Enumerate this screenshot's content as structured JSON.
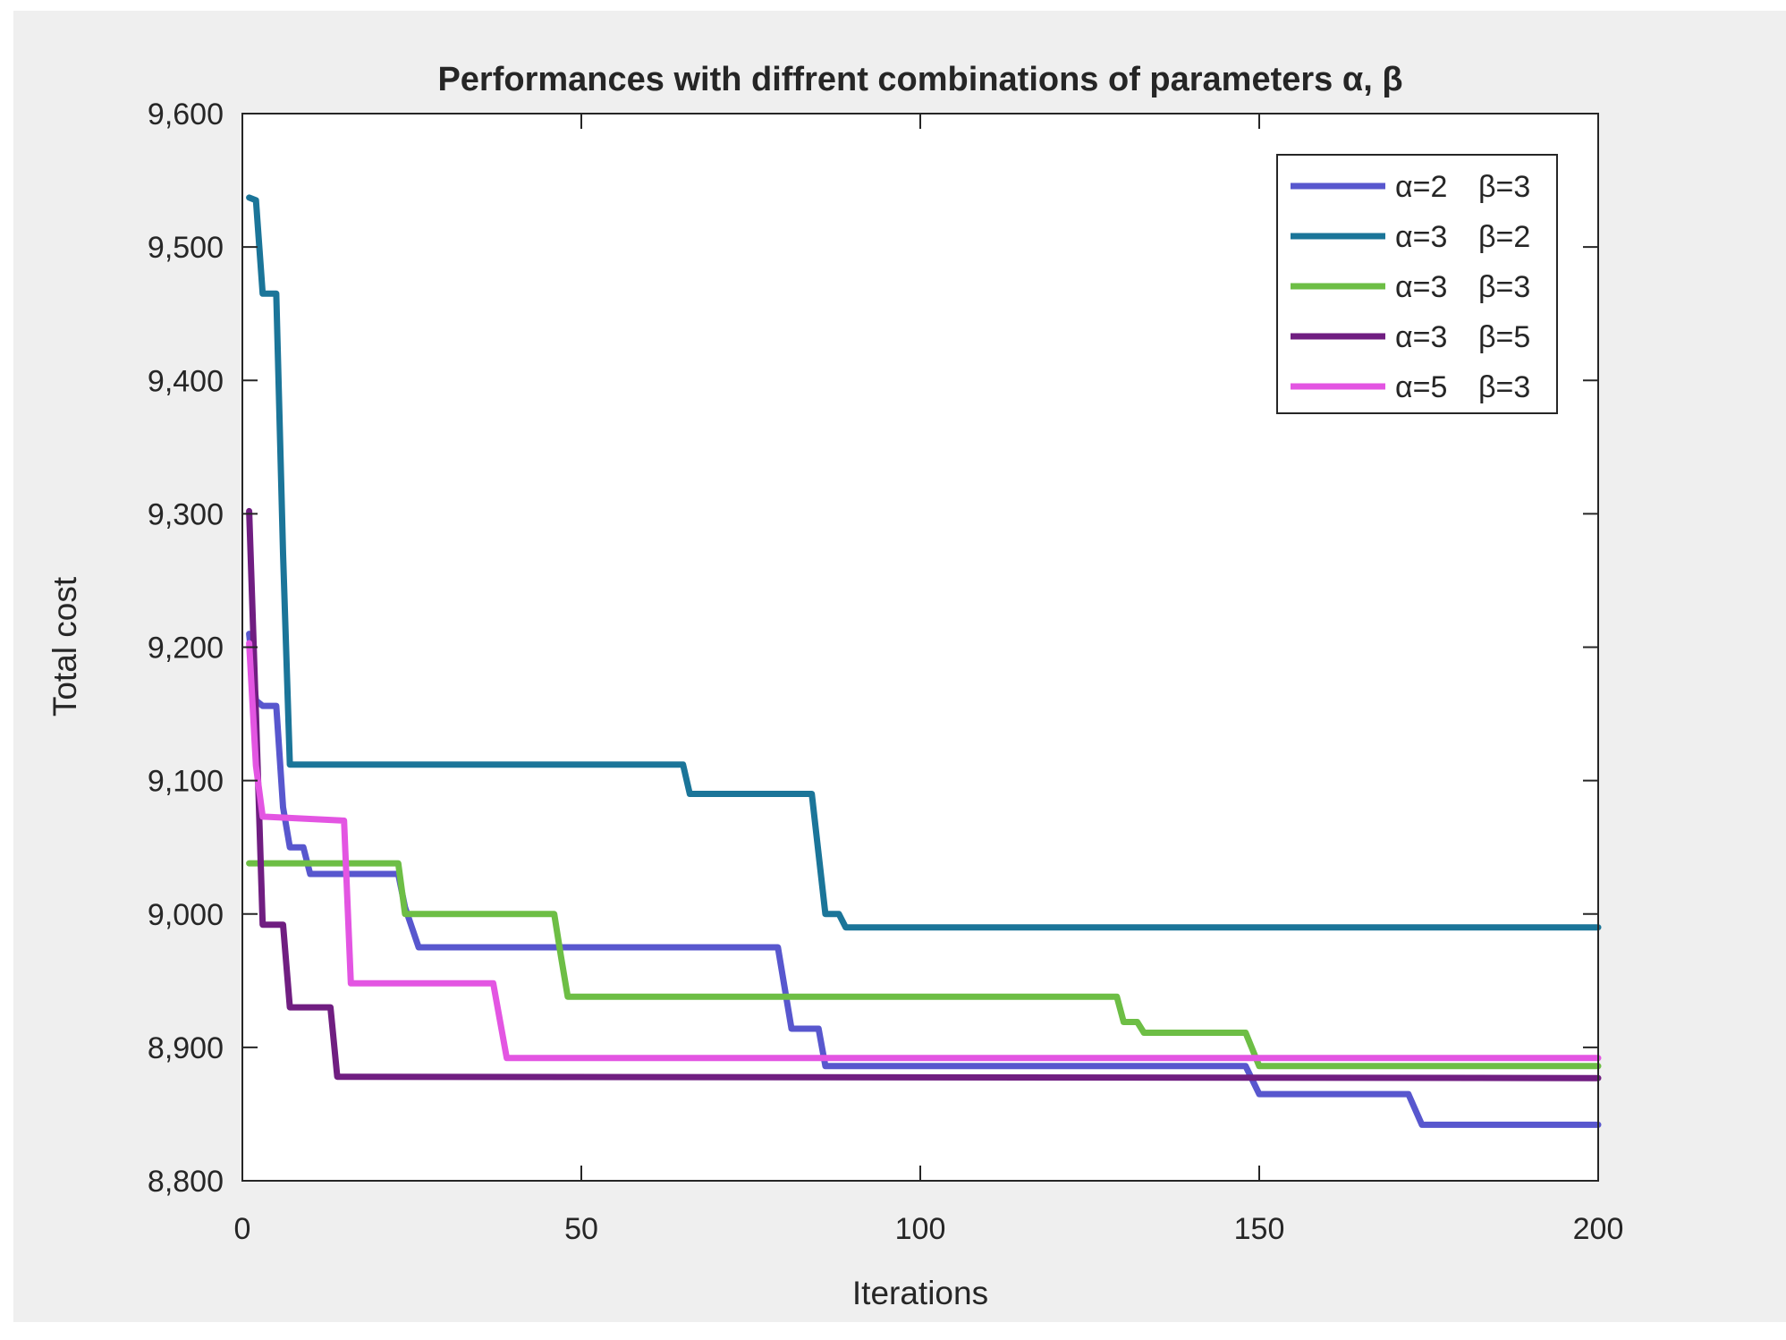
{
  "figure": {
    "background": "#efefef",
    "plot_background": "#ffffff",
    "axis_color": "#262626",
    "text_color": "#262626"
  },
  "chart_data": {
    "type": "line",
    "style": "staircase-convergence",
    "title": "Performances with diffrent combinations of parameters α, β",
    "xlabel": "Iterations",
    "ylabel": "Total cost",
    "xlim": [
      0,
      200
    ],
    "ylim": [
      8800,
      9600
    ],
    "x_ticks": [
      0,
      50,
      100,
      150,
      200
    ],
    "x_tick_labels": [
      "0",
      "50",
      "100",
      "150",
      "200"
    ],
    "y_ticks": [
      8800,
      8900,
      9000,
      9100,
      9200,
      9300,
      9400,
      9500,
      9600
    ],
    "y_tick_labels": [
      "8,800",
      "8,900",
      "9,000",
      "9,100",
      "9,200",
      "9,300",
      "9,400",
      "9,500",
      "9,600"
    ],
    "grid": false,
    "legend_position": "upper-right-inside",
    "line_width": 7,
    "series": [
      {
        "name": "α=2  β=3",
        "alpha": "α=2",
        "beta": "β=3",
        "color": "#5857CE",
        "points": [
          [
            1,
            9210
          ],
          [
            2,
            9160
          ],
          [
            3,
            9156
          ],
          [
            5,
            9156
          ],
          [
            6,
            9080
          ],
          [
            7,
            9050
          ],
          [
            9,
            9050
          ],
          [
            10,
            9030
          ],
          [
            23,
            9030
          ],
          [
            24,
            9005
          ],
          [
            26,
            8975
          ],
          [
            79,
            8975
          ],
          [
            81,
            8914
          ],
          [
            85,
            8914
          ],
          [
            86,
            8886
          ],
          [
            148,
            8886
          ],
          [
            150,
            8865
          ],
          [
            172,
            8865
          ],
          [
            174,
            8842
          ],
          [
            200,
            8842
          ]
        ]
      },
      {
        "name": "α=3  β=2",
        "alpha": "α=3",
        "beta": "β=2",
        "color": "#1B7599",
        "points": [
          [
            1,
            9537
          ],
          [
            2,
            9535
          ],
          [
            3,
            9465
          ],
          [
            5,
            9465
          ],
          [
            6,
            9270
          ],
          [
            7,
            9112
          ],
          [
            65,
            9112
          ],
          [
            66,
            9090
          ],
          [
            84,
            9090
          ],
          [
            86,
            9000
          ],
          [
            88,
            9000
          ],
          [
            89,
            8990
          ],
          [
            200,
            8990
          ]
        ]
      },
      {
        "name": "α=3  β=3",
        "alpha": "α=3",
        "beta": "β=3",
        "color": "#6DBE45",
        "points": [
          [
            1,
            9038
          ],
          [
            23,
            9038
          ],
          [
            24,
            9000
          ],
          [
            46,
            9000
          ],
          [
            47,
            8968
          ],
          [
            48,
            8938
          ],
          [
            129,
            8938
          ],
          [
            130,
            8919
          ],
          [
            132,
            8919
          ],
          [
            133,
            8911
          ],
          [
            148,
            8911
          ],
          [
            150,
            8886
          ],
          [
            200,
            8886
          ]
        ]
      },
      {
        "name": "α=3  β=5",
        "alpha": "α=3",
        "beta": "β=5",
        "color": "#701E81",
        "points": [
          [
            1,
            9302
          ],
          [
            2,
            9150
          ],
          [
            3,
            8992
          ],
          [
            6,
            8992
          ],
          [
            7,
            8930
          ],
          [
            13,
            8930
          ],
          [
            14,
            8878
          ],
          [
            200,
            8877
          ]
        ]
      },
      {
        "name": "α=5  β=3",
        "alpha": "α=5",
        "beta": "β=3",
        "color": "#E355E2",
        "points": [
          [
            1,
            9203
          ],
          [
            2,
            9111
          ],
          [
            3,
            9073
          ],
          [
            15,
            9070
          ],
          [
            16,
            8948
          ],
          [
            37,
            8948
          ],
          [
            39,
            8892
          ],
          [
            200,
            8892
          ]
        ]
      }
    ]
  }
}
